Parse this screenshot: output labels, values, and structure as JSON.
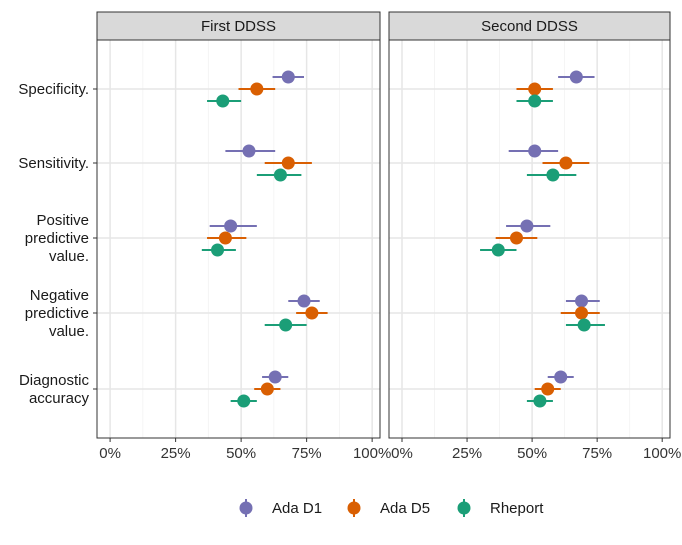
{
  "chart_data": {
    "type": "scatter",
    "title": "",
    "xlabel": "",
    "ylabel": "",
    "xlim": [
      -0.05,
      1.03
    ],
    "x_ticks": [
      0,
      0.25,
      0.5,
      0.75,
      1.0
    ],
    "x_tick_labels": [
      "0%",
      "25%",
      "50%",
      "75%",
      "100%"
    ],
    "categories": [
      {
        "key": "specificity",
        "lines": [
          "Specificity."
        ]
      },
      {
        "key": "sensitivity",
        "lines": [
          "Sensitivity."
        ]
      },
      {
        "key": "ppv",
        "lines": [
          "Positive",
          "predictive",
          "value."
        ]
      },
      {
        "key": "npv",
        "lines": [
          "Negative",
          "predictive",
          "value."
        ]
      },
      {
        "key": "accuracy",
        "lines": [
          "Diagnostic",
          "accuracy"
        ]
      }
    ],
    "panels": [
      {
        "title": "First DDSS",
        "series": [
          {
            "name": "Ada D1",
            "color": "#7570b3",
            "points": [
              {
                "est": 0.68,
                "lo": 0.62,
                "hi": 0.74
              },
              {
                "est": 0.53,
                "lo": 0.44,
                "hi": 0.63
              },
              {
                "est": 0.46,
                "lo": 0.38,
                "hi": 0.56
              },
              {
                "est": 0.74,
                "lo": 0.68,
                "hi": 0.8
              },
              {
                "est": 0.63,
                "lo": 0.58,
                "hi": 0.68
              }
            ]
          },
          {
            "name": "Ada D5",
            "color": "#d95f02",
            "points": [
              {
                "est": 0.56,
                "lo": 0.49,
                "hi": 0.63
              },
              {
                "est": 0.68,
                "lo": 0.59,
                "hi": 0.77
              },
              {
                "est": 0.44,
                "lo": 0.37,
                "hi": 0.52
              },
              {
                "est": 0.77,
                "lo": 0.71,
                "hi": 0.83
              },
              {
                "est": 0.6,
                "lo": 0.55,
                "hi": 0.65
              }
            ]
          },
          {
            "name": "Rheport",
            "color": "#1b9e77",
            "points": [
              {
                "est": 0.43,
                "lo": 0.37,
                "hi": 0.5
              },
              {
                "est": 0.65,
                "lo": 0.56,
                "hi": 0.73
              },
              {
                "est": 0.41,
                "lo": 0.35,
                "hi": 0.48
              },
              {
                "est": 0.67,
                "lo": 0.59,
                "hi": 0.75
              },
              {
                "est": 0.51,
                "lo": 0.46,
                "hi": 0.56
              }
            ]
          }
        ]
      },
      {
        "title": "Second DDSS",
        "series": [
          {
            "name": "Ada D1",
            "color": "#7570b3",
            "points": [
              {
                "est": 0.67,
                "lo": 0.6,
                "hi": 0.74
              },
              {
                "est": 0.51,
                "lo": 0.41,
                "hi": 0.6
              },
              {
                "est": 0.48,
                "lo": 0.4,
                "hi": 0.57
              },
              {
                "est": 0.69,
                "lo": 0.63,
                "hi": 0.76
              },
              {
                "est": 0.61,
                "lo": 0.56,
                "hi": 0.66
              }
            ]
          },
          {
            "name": "Ada D5",
            "color": "#d95f02",
            "points": [
              {
                "est": 0.51,
                "lo": 0.44,
                "hi": 0.58
              },
              {
                "est": 0.63,
                "lo": 0.54,
                "hi": 0.72
              },
              {
                "est": 0.44,
                "lo": 0.36,
                "hi": 0.52
              },
              {
                "est": 0.69,
                "lo": 0.61,
                "hi": 0.76
              },
              {
                "est": 0.56,
                "lo": 0.51,
                "hi": 0.61
              }
            ]
          },
          {
            "name": "Rheport",
            "color": "#1b9e77",
            "points": [
              {
                "est": 0.51,
                "lo": 0.44,
                "hi": 0.58
              },
              {
                "est": 0.58,
                "lo": 0.48,
                "hi": 0.67
              },
              {
                "est": 0.37,
                "lo": 0.3,
                "hi": 0.44
              },
              {
                "est": 0.7,
                "lo": 0.63,
                "hi": 0.78
              },
              {
                "est": 0.53,
                "lo": 0.48,
                "hi": 0.58
              }
            ]
          }
        ]
      }
    ],
    "legend": {
      "position": "bottom",
      "entries": [
        "Ada D1",
        "Ada D5",
        "Rheport"
      ]
    }
  }
}
